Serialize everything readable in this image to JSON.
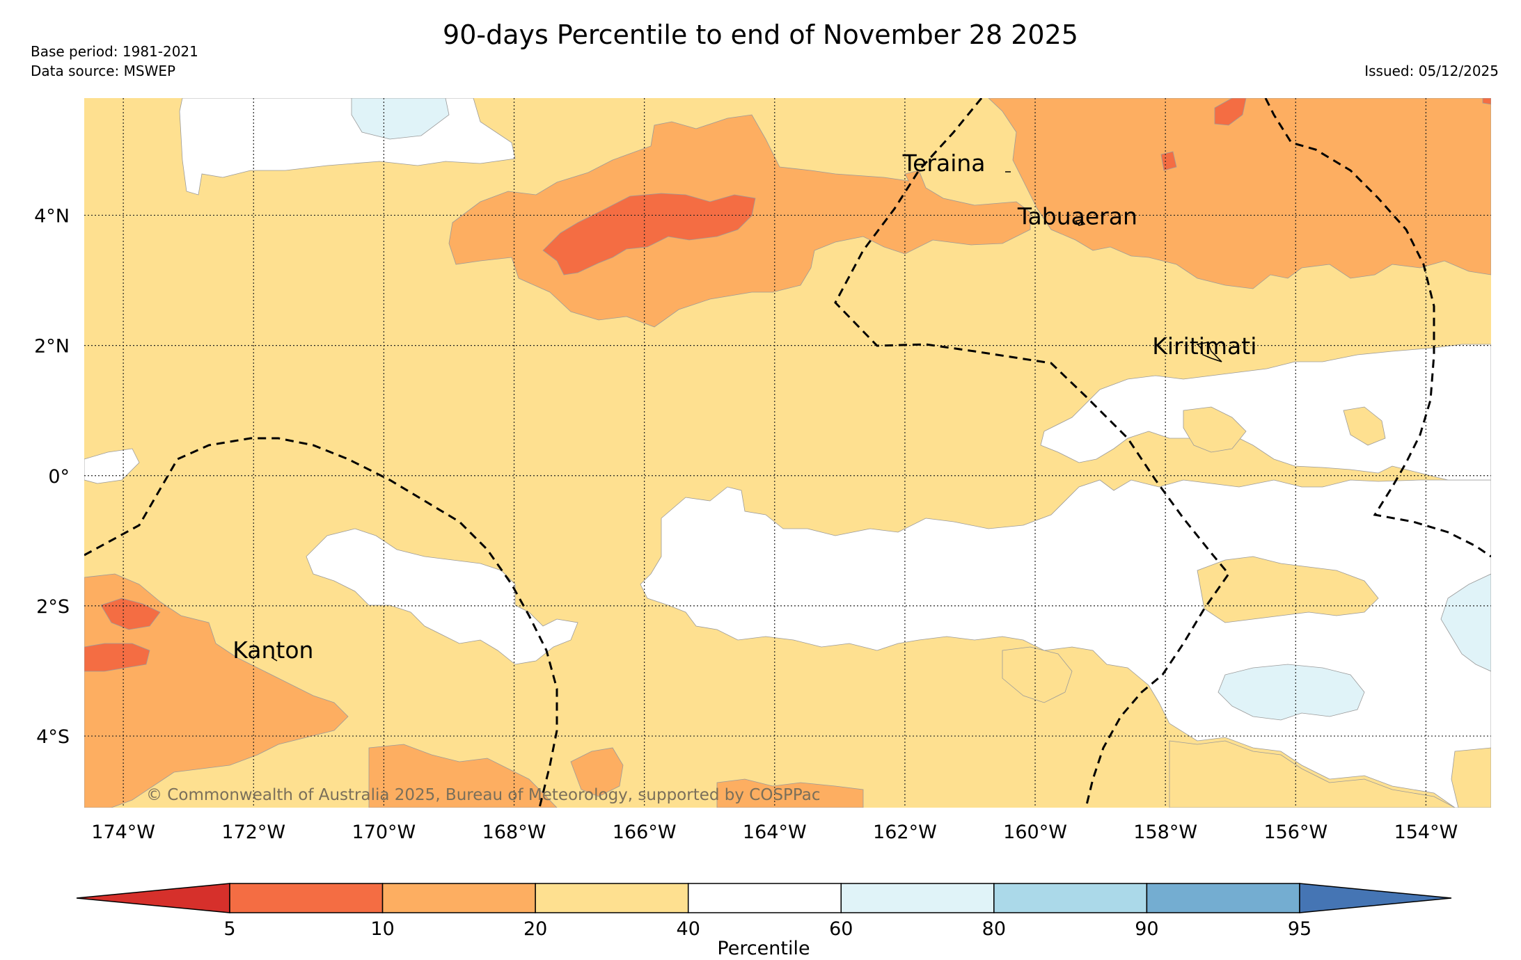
{
  "title": "90-days Percentile to end of November 28 2025",
  "base_period": "Base period: 1981-2021",
  "data_source": "Data source: MSWEP",
  "issued": "Issued: 05/12/2025",
  "copyright": "© Commonwealth of Australia 2025, Bureau of Meteorology, supported by COSPPac",
  "map": {
    "lon_range": [
      -174.6,
      -153.0
    ],
    "lat_range": [
      -5.1,
      5.8
    ],
    "x_ticks": [
      "174°W",
      "172°W",
      "170°W",
      "168°W",
      "166°W",
      "164°W",
      "162°W",
      "160°W",
      "158°W",
      "156°W",
      "154°W"
    ],
    "x_tick_values": [
      -174,
      -172,
      -170,
      -168,
      -166,
      -164,
      -162,
      -160,
      -158,
      -156,
      -154
    ],
    "y_ticks": [
      "4°N",
      "2°N",
      "0°",
      "2°S",
      "4°S"
    ],
    "y_tick_values": [
      4,
      2,
      0,
      -2,
      -4
    ],
    "grid": "dotted",
    "places": [
      {
        "name": "Teraina",
        "lon": -161.4,
        "lat": 4.68
      },
      {
        "name": "Tabuaeran",
        "lon": -159.35,
        "lat": 3.86
      },
      {
        "name": "Kiritimati",
        "lon": -157.4,
        "lat": 1.87
      },
      {
        "name": "Kanton",
        "lon": -171.7,
        "lat": -2.8
      }
    ]
  },
  "colorbar": {
    "label": "Percentile",
    "ticks": [
      "5",
      "10",
      "20",
      "40",
      "60",
      "80",
      "90",
      "95"
    ],
    "colors": [
      "#d6302b",
      "#f46d43",
      "#fdae61",
      "#fee090",
      "#ffffff",
      "#e0f3f8",
      "#abd9e9",
      "#74add1",
      "#4575b4"
    ]
  }
}
